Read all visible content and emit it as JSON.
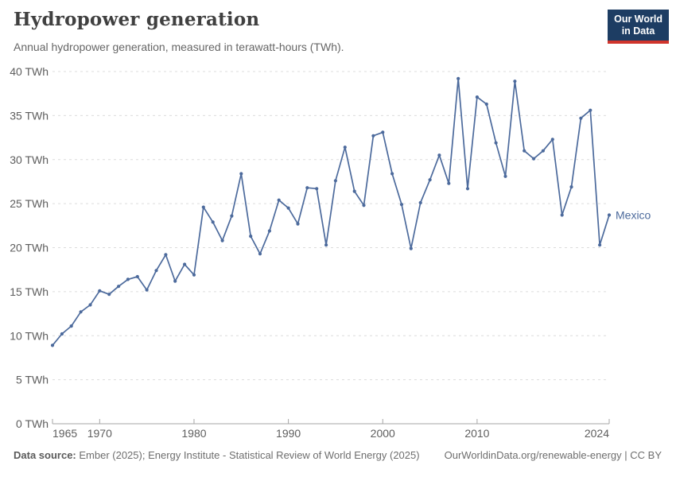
{
  "header": {
    "title": "Hydropower generation",
    "subtitle": "Annual hydropower generation, measured in terawatt-hours (TWh)."
  },
  "logo": {
    "line1": "Our World",
    "line2": "in Data"
  },
  "chart_data": {
    "type": "line",
    "title": "Hydropower generation",
    "unit": "TWh",
    "ylabel": "",
    "xlabel": "",
    "ylim": [
      0,
      40
    ],
    "yticks": [
      0,
      5,
      10,
      15,
      20,
      25,
      30,
      35,
      40
    ],
    "ytick_label_suffix": " TWh",
    "xticks": [
      1965,
      1970,
      1980,
      1990,
      2000,
      2010,
      2024
    ],
    "grid": "horizontal-dashed",
    "legend_position": "end-of-line-label",
    "series": [
      {
        "name": "Mexico",
        "color": "#4C6A9C",
        "x": [
          1965,
          1966,
          1967,
          1968,
          1969,
          1970,
          1971,
          1972,
          1973,
          1974,
          1975,
          1976,
          1977,
          1978,
          1979,
          1980,
          1981,
          1982,
          1983,
          1984,
          1985,
          1986,
          1987,
          1988,
          1989,
          1990,
          1991,
          1992,
          1993,
          1994,
          1995,
          1996,
          1997,
          1998,
          1999,
          2000,
          2001,
          2002,
          2003,
          2004,
          2005,
          2006,
          2007,
          2008,
          2009,
          2010,
          2011,
          2012,
          2013,
          2014,
          2015,
          2016,
          2017,
          2018,
          2019,
          2020,
          2021,
          2022,
          2023,
          2024
        ],
        "values": [
          8.9,
          10.2,
          11.1,
          12.7,
          13.5,
          15.1,
          14.7,
          15.6,
          16.4,
          16.7,
          15.2,
          17.4,
          19.2,
          16.2,
          18.1,
          16.9,
          24.6,
          22.9,
          20.8,
          23.6,
          28.4,
          21.3,
          19.3,
          21.9,
          25.4,
          24.5,
          22.7,
          26.8,
          26.7,
          20.3,
          27.6,
          31.4,
          26.4,
          24.8,
          32.7,
          33.1,
          28.4,
          24.9,
          19.9,
          25.1,
          27.7,
          30.5,
          27.3,
          39.2,
          26.7,
          37.1,
          36.3,
          31.9,
          28.1,
          38.9,
          31.0,
          30.1,
          31.0,
          32.3,
          23.7,
          26.9,
          34.7,
          35.6,
          20.3,
          23.7
        ]
      }
    ]
  },
  "footer": {
    "datasource_label": "Data source:",
    "datasource_text": " Ember (2025); Energy Institute - Statistical Review of World Energy (2025)",
    "rights": "OurWorldinData.org/renewable-energy | CC BY"
  },
  "colors": {
    "line": "#4C6A9C",
    "axis": "#a5a5a5",
    "gridline": "#dcdcdc",
    "tick_label": "#5e5e5e",
    "logo_navy": "#1d3d63",
    "logo_red": "#d0342c"
  }
}
